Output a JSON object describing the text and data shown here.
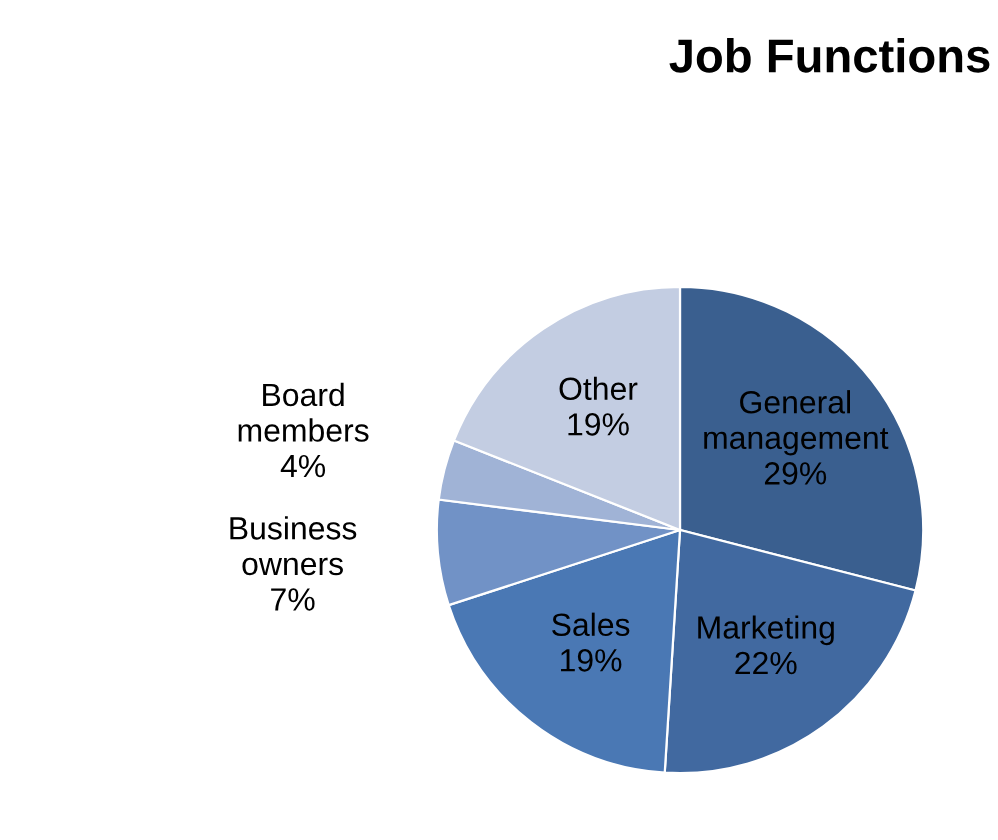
{
  "chart_data": {
    "type": "pie",
    "title": "Job Functions",
    "categories": [
      "General\nmanagement",
      "Marketing",
      "Sales",
      "Business\nowners",
      "Board\nmembers",
      "Other"
    ],
    "values": [
      29,
      22,
      19,
      7,
      4,
      19
    ],
    "value_labels": [
      "29%",
      "22%",
      "19%",
      "7%",
      "4%",
      "19%"
    ],
    "colors": [
      "#3a5f8f",
      "#4169a0",
      "#4a78b4",
      "#7192c6",
      "#a0b3d6",
      "#c3cde2"
    ],
    "legend": false
  }
}
